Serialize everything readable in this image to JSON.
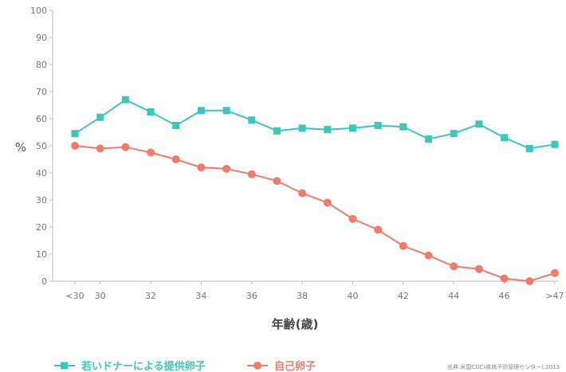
{
  "chart_data": {
    "type": "line",
    "xlabel": "年齢(歳)",
    "ylabel": "%",
    "ylim": [
      0,
      100
    ],
    "yticks": [
      0,
      10,
      20,
      30,
      40,
      50,
      60,
      70,
      80,
      90,
      100
    ],
    "x": [
      "<30",
      "30",
      "31",
      "32",
      "33",
      "34",
      "35",
      "36",
      "37",
      "38",
      "39",
      "40",
      "41",
      "42",
      "43",
      "44",
      "45",
      "46",
      "47",
      ">47"
    ],
    "xticks": [
      {
        "at": "<30",
        "label": "<30"
      },
      {
        "at": "30",
        "label": "30"
      },
      {
        "at": "32",
        "label": "32"
      },
      {
        "at": "34",
        "label": "34"
      },
      {
        "at": "36",
        "label": "36"
      },
      {
        "at": "38",
        "label": "38"
      },
      {
        "at": "40",
        "label": "40"
      },
      {
        "at": "42",
        "label": "42"
      },
      {
        "at": "44",
        "label": "44"
      },
      {
        "at": "46",
        "label": "46"
      },
      {
        "at": ">47",
        "label": ">47"
      }
    ],
    "series": [
      {
        "name": "若いドナーによる提供卵子",
        "color": "#3cc7b8",
        "marker": "square",
        "values": [
          54.5,
          60.5,
          67,
          62.5,
          57.5,
          63,
          63,
          59.5,
          55.5,
          56.5,
          56,
          56.5,
          57.5,
          57,
          52.5,
          54.5,
          58,
          53,
          49,
          50.5
        ]
      },
      {
        "name": "自己卵子",
        "color": "#f07b6a",
        "marker": "circle",
        "values": [
          50,
          49,
          49.5,
          47.5,
          45,
          42,
          41.5,
          39.5,
          37,
          32.5,
          29,
          23,
          19,
          13,
          9.5,
          5.5,
          4.5,
          1,
          0,
          3
        ]
      }
    ],
    "legend": "bottom-left",
    "grid": false,
    "source": "出典:米国CDC(疾病予防管理センター),2013"
  }
}
